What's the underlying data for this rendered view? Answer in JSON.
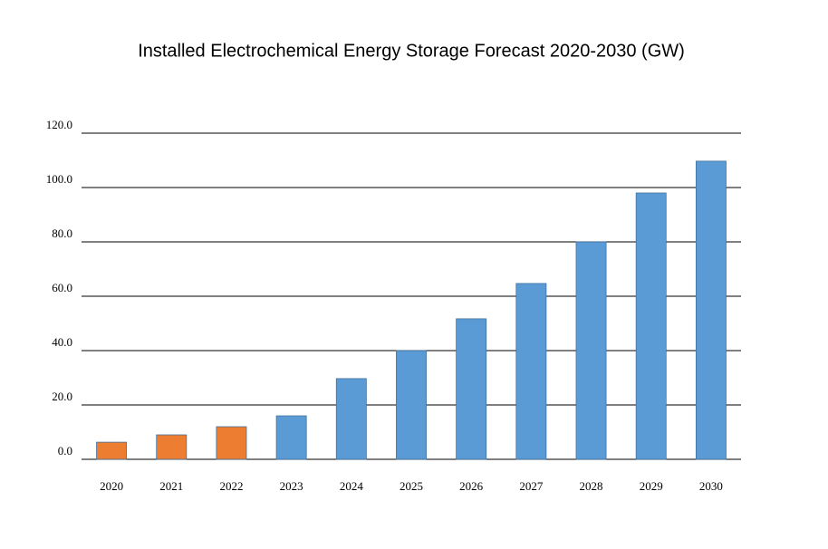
{
  "chart_data": {
    "type": "bar",
    "title": "Installed Electrochemical Energy Storage Forecast 2020-2030 (GW)",
    "categories": [
      "2020",
      "2021",
      "2022",
      "2023",
      "2024",
      "2025",
      "2026",
      "2027",
      "2028",
      "2029",
      "2030"
    ],
    "values": [
      6.3,
      9,
      12,
      16,
      29.7,
      40,
      51.7,
      64.7,
      80,
      98,
      109.7
    ],
    "colors": [
      "#ed7d31",
      "#ed7d31",
      "#ed7d31",
      "#5b9bd5",
      "#5b9bd5",
      "#5b9bd5",
      "#5b9bd5",
      "#5b9bd5",
      "#5b9bd5",
      "#5b9bd5",
      "#5b9bd5"
    ],
    "ylim": [
      0,
      120
    ],
    "yticks": [
      {
        "value": 0,
        "label": "0.0"
      },
      {
        "value": 20,
        "label": "20.0"
      },
      {
        "value": 40,
        "label": "40.0"
      },
      {
        "value": 60,
        "label": "60.0"
      },
      {
        "value": 80,
        "label": "80.0"
      },
      {
        "value": 100,
        "label": "100.0"
      },
      {
        "value": 120,
        "label": "120.0"
      }
    ],
    "grid": true
  }
}
